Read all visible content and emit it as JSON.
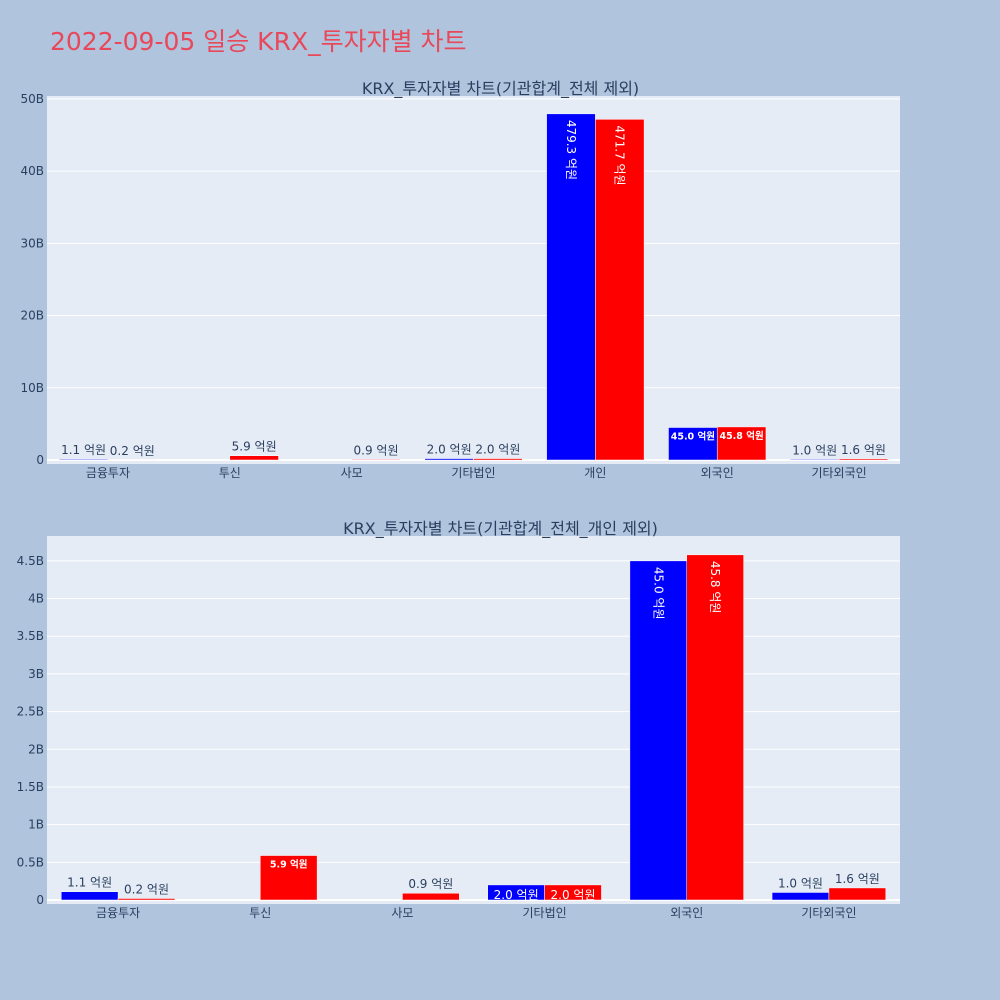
{
  "page_title": "2022-09-05 일승 KRX_투자자별 차트",
  "colors": {
    "background": "#b0c4de",
    "plot_bg": "#e5ecf6",
    "title": "#e8485a",
    "buy": "#0000ff",
    "sell": "#ff0000",
    "text": "#2a3f5f"
  },
  "chart_data": [
    {
      "type": "bar",
      "title": "KRX_투자자별 차트(기관합계_전체 제외)",
      "categories": [
        "금융투자",
        "투신",
        "사모",
        "기타법인",
        "개인",
        "외국인",
        "기타외국인"
      ],
      "series": [
        {
          "values": [
            110000000,
            0,
            0,
            200000000,
            47930000000,
            4500000000,
            100000000
          ],
          "labels": [
            "1.1 억원",
            "",
            "",
            "2.0 억원",
            "479.3 억원",
            "45.0 억원",
            "1.0 억원"
          ]
        },
        {
          "values": [
            20000000,
            590000000,
            90000000,
            200000000,
            47170000000,
            4580000000,
            160000000
          ],
          "labels": [
            "0.2 억원",
            "5.9 억원",
            "0.9 억원",
            "2.0 억원",
            "471.7 억원",
            "45.8 억원",
            "1.6 억원"
          ]
        }
      ],
      "yticks": [
        0,
        10000000000,
        20000000000,
        30000000000,
        40000000000,
        50000000000
      ],
      "yticklabels": [
        "0",
        "10B",
        "20B",
        "30B",
        "40B",
        "50B"
      ],
      "ylim": [
        0,
        50400000000
      ],
      "grid": true
    },
    {
      "type": "bar",
      "title": "KRX_투자자별 차트(기관합계_전체_개인 제외)",
      "categories": [
        "금융투자",
        "투신",
        "사모",
        "기타법인",
        "외국인",
        "기타외국인"
      ],
      "series": [
        {
          "values": [
            110000000,
            0,
            0,
            200000000,
            4500000000,
            100000000
          ],
          "labels": [
            "1.1 억원",
            "",
            "",
            "2.0 억원",
            "45.0 억원",
            "1.0 억원"
          ]
        },
        {
          "values": [
            20000000,
            590000000,
            90000000,
            200000000,
            4580000000,
            160000000
          ],
          "labels": [
            "0.2 억원",
            "5.9 억원",
            "0.9 억원",
            "2.0 억원",
            "45.8 억원",
            "1.6 억원"
          ]
        }
      ],
      "yticks": [
        0,
        500000000,
        1000000000,
        1500000000,
        2000000000,
        2500000000,
        3000000000,
        3500000000,
        4000000000,
        4500000000
      ],
      "yticklabels": [
        "0",
        "0.5B",
        "1B",
        "1.5B",
        "2B",
        "2.5B",
        "3B",
        "3.5B",
        "4B",
        "4.5B"
      ],
      "ylim": [
        0,
        4830000000
      ],
      "grid": true
    }
  ]
}
